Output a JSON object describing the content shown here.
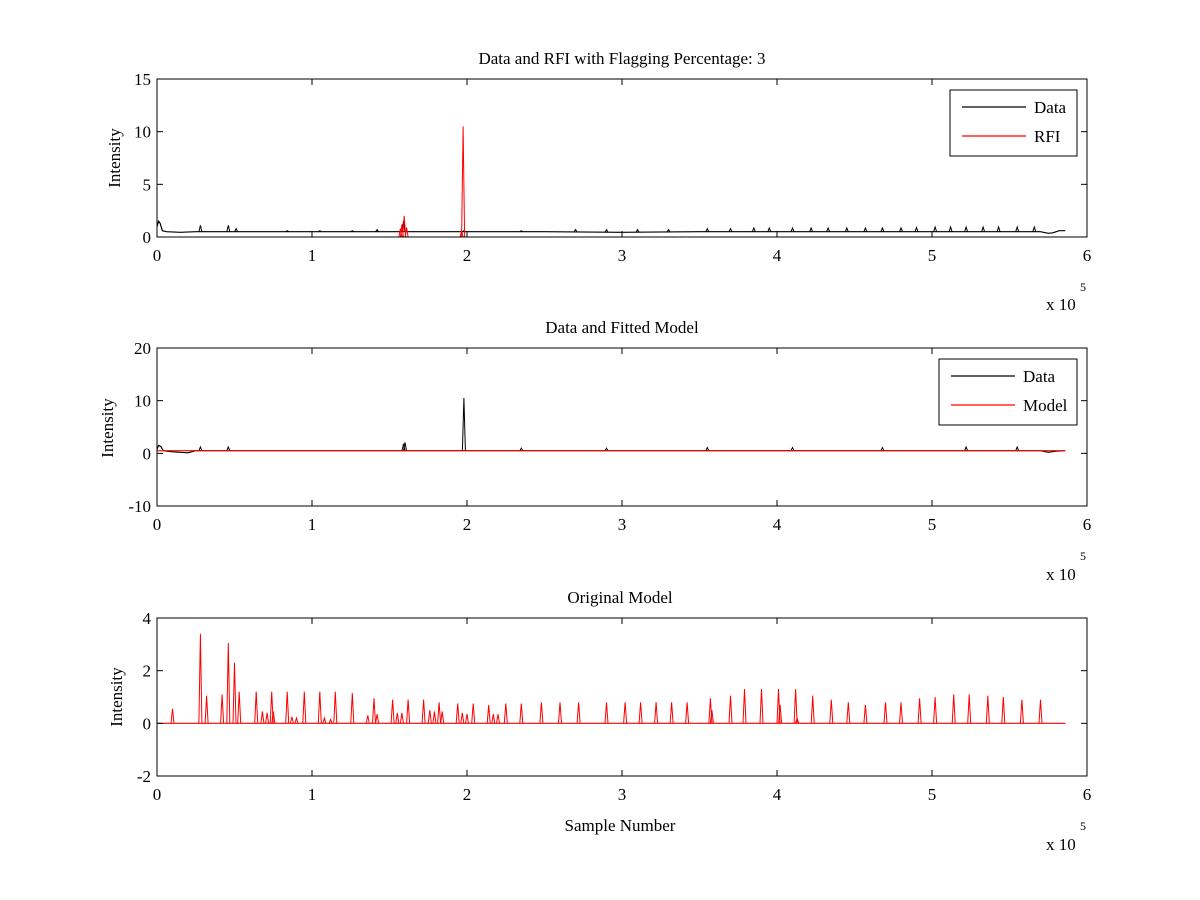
{
  "chart_data": [
    {
      "type": "line",
      "title": "Data and RFI with Flagging Percentage: 3",
      "xlabel": "",
      "ylabel": "Intensity",
      "xlim": [
        0,
        6
      ],
      "ylim": [
        0,
        15
      ],
      "x_ticks": [
        "0",
        "1",
        "2",
        "3",
        "4",
        "5",
        "6"
      ],
      "y_ticks": [
        "0",
        "5",
        "10",
        "15"
      ],
      "x_multiplier": {
        "base": "x 10",
        "exp": "5"
      },
      "legend": {
        "position": "top-right",
        "entries": [
          {
            "name": "Data",
            "color": "#000000"
          },
          {
            "name": "RFI",
            "color": "#ff0000"
          }
        ]
      },
      "series": [
        {
          "name": "Data",
          "color": "#000000",
          "baseline": [
            [
              0,
              1.0
            ],
            [
              0.01,
              1.5
            ],
            [
              0.02,
              1.3
            ],
            [
              0.035,
              0.6
            ],
            [
              0.06,
              0.5
            ],
            [
              0.15,
              0.45
            ],
            [
              0.25,
              0.5
            ],
            [
              0.5,
              0.5
            ],
            [
              1.0,
              0.5
            ],
            [
              1.5,
              0.5
            ],
            [
              2.0,
              0.5
            ],
            [
              2.5,
              0.5
            ],
            [
              3.0,
              0.45
            ],
            [
              3.5,
              0.5
            ],
            [
              4.0,
              0.5
            ],
            [
              4.5,
              0.5
            ],
            [
              5.0,
              0.5
            ],
            [
              5.5,
              0.5
            ],
            [
              5.7,
              0.5
            ],
            [
              5.75,
              0.35
            ],
            [
              5.78,
              0.4
            ],
            [
              5.82,
              0.6
            ],
            [
              5.86,
              0.6
            ]
          ],
          "spikes": [
            [
              0.28,
              1.1
            ],
            [
              0.46,
              1.1
            ],
            [
              0.51,
              0.8
            ],
            [
              0.84,
              0.6
            ],
            [
              1.05,
              0.6
            ],
            [
              1.26,
              0.6
            ],
            [
              1.42,
              0.7
            ],
            [
              1.59,
              1.5
            ],
            [
              1.98,
              0.6
            ],
            [
              2.35,
              0.6
            ],
            [
              2.7,
              0.7
            ],
            [
              2.9,
              0.7
            ],
            [
              3.1,
              0.7
            ],
            [
              3.3,
              0.7
            ],
            [
              3.55,
              0.8
            ],
            [
              3.7,
              0.8
            ],
            [
              3.85,
              0.85
            ],
            [
              3.95,
              0.85
            ],
            [
              4.1,
              0.85
            ],
            [
              4.22,
              0.85
            ],
            [
              4.33,
              0.85
            ],
            [
              4.45,
              0.85
            ],
            [
              4.57,
              0.85
            ],
            [
              4.68,
              0.85
            ],
            [
              4.8,
              0.85
            ],
            [
              4.9,
              0.9
            ],
            [
              5.02,
              0.95
            ],
            [
              5.12,
              0.95
            ],
            [
              5.22,
              0.95
            ],
            [
              5.33,
              0.95
            ],
            [
              5.43,
              0.95
            ],
            [
              5.55,
              0.95
            ],
            [
              5.66,
              0.95
            ]
          ]
        },
        {
          "name": "RFI",
          "color": "#ff0000",
          "spikes": [
            [
              1.57,
              0.8
            ],
            [
              1.58,
              1.2
            ],
            [
              1.595,
              2.0
            ],
            [
              1.61,
              0.9
            ],
            [
              1.965,
              0.6
            ],
            [
              1.975,
              10.5
            ]
          ]
        }
      ]
    },
    {
      "type": "line",
      "title": "Data and Fitted Model",
      "xlabel": "",
      "ylabel": "Intensity",
      "xlim": [
        0,
        6
      ],
      "ylim": [
        -10,
        20
      ],
      "x_ticks": [
        "0",
        "1",
        "2",
        "3",
        "4",
        "5",
        "6"
      ],
      "y_ticks": [
        "-10",
        "0",
        "10",
        "20"
      ],
      "x_multiplier": {
        "base": "x 10",
        "exp": "5"
      },
      "legend": {
        "position": "top-right",
        "entries": [
          {
            "name": "Data",
            "color": "#000000"
          },
          {
            "name": "Model",
            "color": "#ff0000"
          }
        ]
      },
      "series": [
        {
          "name": "Data",
          "color": "#000000",
          "baseline": [
            [
              0,
              0.8
            ],
            [
              0.01,
              1.5
            ],
            [
              0.025,
              1.3
            ],
            [
              0.04,
              0.5
            ],
            [
              0.1,
              0.3
            ],
            [
              0.2,
              0.1
            ],
            [
              0.25,
              0.5
            ],
            [
              1.0,
              0.5
            ],
            [
              2.0,
              0.5
            ],
            [
              3.0,
              0.5
            ],
            [
              4.0,
              0.5
            ],
            [
              5.0,
              0.5
            ],
            [
              5.7,
              0.5
            ],
            [
              5.75,
              0.2
            ],
            [
              5.8,
              0.4
            ],
            [
              5.86,
              0.5
            ]
          ],
          "spikes": [
            [
              0.28,
              1.2
            ],
            [
              0.46,
              1.2
            ],
            [
              1.59,
              1.8
            ],
            [
              1.6,
              2.1
            ],
            [
              1.98,
              10.5
            ],
            [
              2.35,
              1.0
            ],
            [
              2.9,
              1.0
            ],
            [
              3.55,
              1.1
            ],
            [
              4.1,
              1.1
            ],
            [
              4.68,
              1.1
            ],
            [
              5.22,
              1.2
            ],
            [
              5.55,
              1.2
            ]
          ]
        },
        {
          "name": "Model",
          "color": "#ff0000",
          "baseline": [
            [
              0,
              0.5
            ],
            [
              5.86,
              0.5
            ]
          ],
          "spikes": []
        }
      ]
    },
    {
      "type": "line",
      "title": "Original Model",
      "xlabel": "Sample Number",
      "ylabel": "Intensity",
      "xlim": [
        0,
        6
      ],
      "ylim": [
        -2,
        4
      ],
      "x_ticks": [
        "0",
        "1",
        "2",
        "3",
        "4",
        "5",
        "6"
      ],
      "y_ticks": [
        "-2",
        "0",
        "2",
        "4"
      ],
      "x_multiplier": {
        "base": "x 10",
        "exp": "5"
      },
      "legend": null,
      "series": [
        {
          "name": "",
          "color": "#ff0000",
          "baseline": [
            [
              0,
              0
            ],
            [
              5.86,
              0
            ]
          ],
          "spikes": [
            [
              0.1,
              0.55
            ],
            [
              0.28,
              3.4
            ],
            [
              0.32,
              1.05
            ],
            [
              0.42,
              1.1
            ],
            [
              0.46,
              3.05
            ],
            [
              0.5,
              2.3
            ],
            [
              0.53,
              1.2
            ],
            [
              0.64,
              1.2
            ],
            [
              0.68,
              0.45
            ],
            [
              0.71,
              0.4
            ],
            [
              0.74,
              1.2
            ],
            [
              0.75,
              0.45
            ],
            [
              0.84,
              1.2
            ],
            [
              0.87,
              0.25
            ],
            [
              0.9,
              0.2
            ],
            [
              0.95,
              1.2
            ],
            [
              1.05,
              1.2
            ],
            [
              1.08,
              0.2
            ],
            [
              1.12,
              0.15
            ],
            [
              1.15,
              1.2
            ],
            [
              1.26,
              1.15
            ],
            [
              1.36,
              0.3
            ],
            [
              1.4,
              0.95
            ],
            [
              1.42,
              0.35
            ],
            [
              1.52,
              0.9
            ],
            [
              1.55,
              0.4
            ],
            [
              1.58,
              0.4
            ],
            [
              1.62,
              0.9
            ],
            [
              1.72,
              0.9
            ],
            [
              1.76,
              0.5
            ],
            [
              1.79,
              0.45
            ],
            [
              1.82,
              0.8
            ],
            [
              1.84,
              0.45
            ],
            [
              1.94,
              0.75
            ],
            [
              1.97,
              0.4
            ],
            [
              2.0,
              0.35
            ],
            [
              2.04,
              0.75
            ],
            [
              2.14,
              0.7
            ],
            [
              2.17,
              0.35
            ],
            [
              2.2,
              0.35
            ],
            [
              2.25,
              0.75
            ],
            [
              2.35,
              0.75
            ],
            [
              2.48,
              0.8
            ],
            [
              2.6,
              0.8
            ],
            [
              2.72,
              0.8
            ],
            [
              2.9,
              0.8
            ],
            [
              3.02,
              0.8
            ],
            [
              3.12,
              0.8
            ],
            [
              3.22,
              0.8
            ],
            [
              3.32,
              0.8
            ],
            [
              3.42,
              0.8
            ],
            [
              3.57,
              0.95
            ],
            [
              3.58,
              0.5
            ],
            [
              3.7,
              1.05
            ],
            [
              3.79,
              1.3
            ],
            [
              3.9,
              1.3
            ],
            [
              4.01,
              1.3
            ],
            [
              4.02,
              0.7
            ],
            [
              4.12,
              1.3
            ],
            [
              4.13,
              0.2
            ],
            [
              4.23,
              1.05
            ],
            [
              4.35,
              0.9
            ],
            [
              4.46,
              0.8
            ],
            [
              4.57,
              0.7
            ],
            [
              4.7,
              0.8
            ],
            [
              4.8,
              0.8
            ],
            [
              4.92,
              0.95
            ],
            [
              5.02,
              1.0
            ],
            [
              5.14,
              1.1
            ],
            [
              5.24,
              1.1
            ],
            [
              5.36,
              1.05
            ],
            [
              5.46,
              1.0
            ],
            [
              5.58,
              0.9
            ],
            [
              5.7,
              0.9
            ]
          ]
        }
      ]
    }
  ]
}
